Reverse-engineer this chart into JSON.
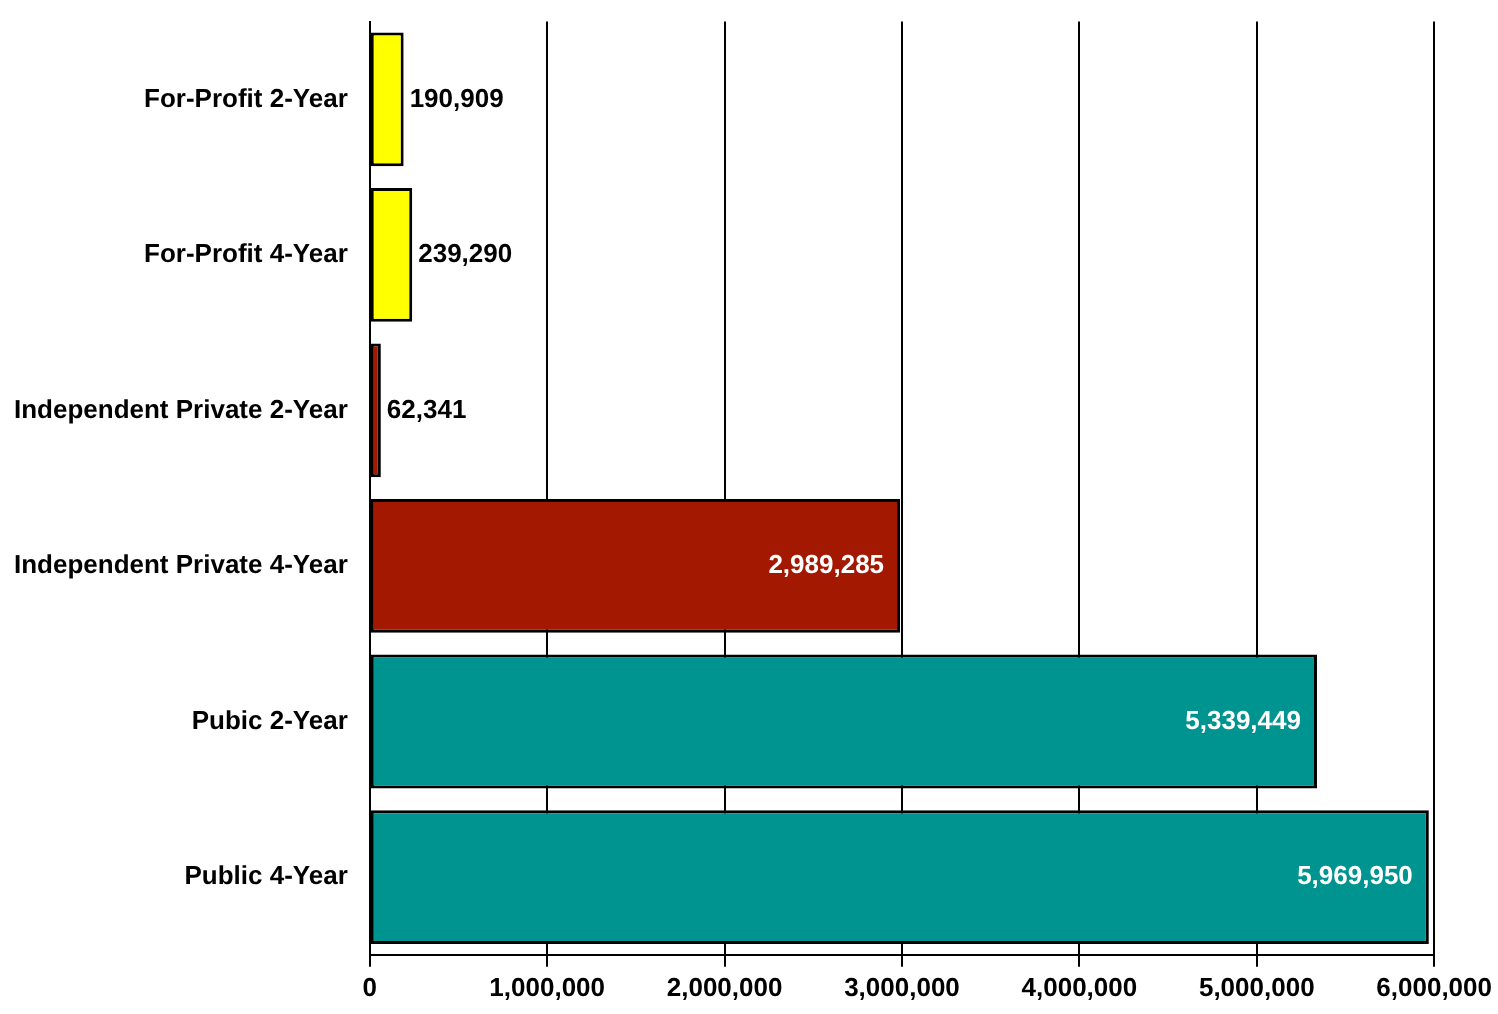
{
  "chart_data": {
    "type": "bar",
    "orientation": "horizontal",
    "categories": [
      "For-Profit 2-Year",
      "For-Profit 4-Year",
      "Independent Private 2-Year",
      "Independent Private 4-Year",
      "Pubic 2-Year",
      "Public 4-Year"
    ],
    "values": [
      190909,
      239290,
      62341,
      2989285,
      5339449,
      5969950
    ],
    "colors": [
      "#ffff00",
      "#ffff00",
      "#a31800",
      "#a31800",
      "#009490",
      "#009490"
    ],
    "xlim": [
      0,
      6000000
    ],
    "xticks": [
      {
        "value": 0,
        "label": "0"
      },
      {
        "value": 1000000,
        "label": "1,000,000"
      },
      {
        "value": 2000000,
        "label": "2,000,000"
      },
      {
        "value": 3000000,
        "label": "3,000,000"
      },
      {
        "value": 4000000,
        "label": "4,000,000"
      },
      {
        "value": 5000000,
        "label": "5,000,000"
      },
      {
        "value": 6000000,
        "label": "6,000,000"
      }
    ],
    "value_labels": [
      "190,909",
      "239,290",
      "62,341",
      "2,989,285",
      "5,339,449",
      "5,969,950"
    ],
    "grid": "x"
  }
}
